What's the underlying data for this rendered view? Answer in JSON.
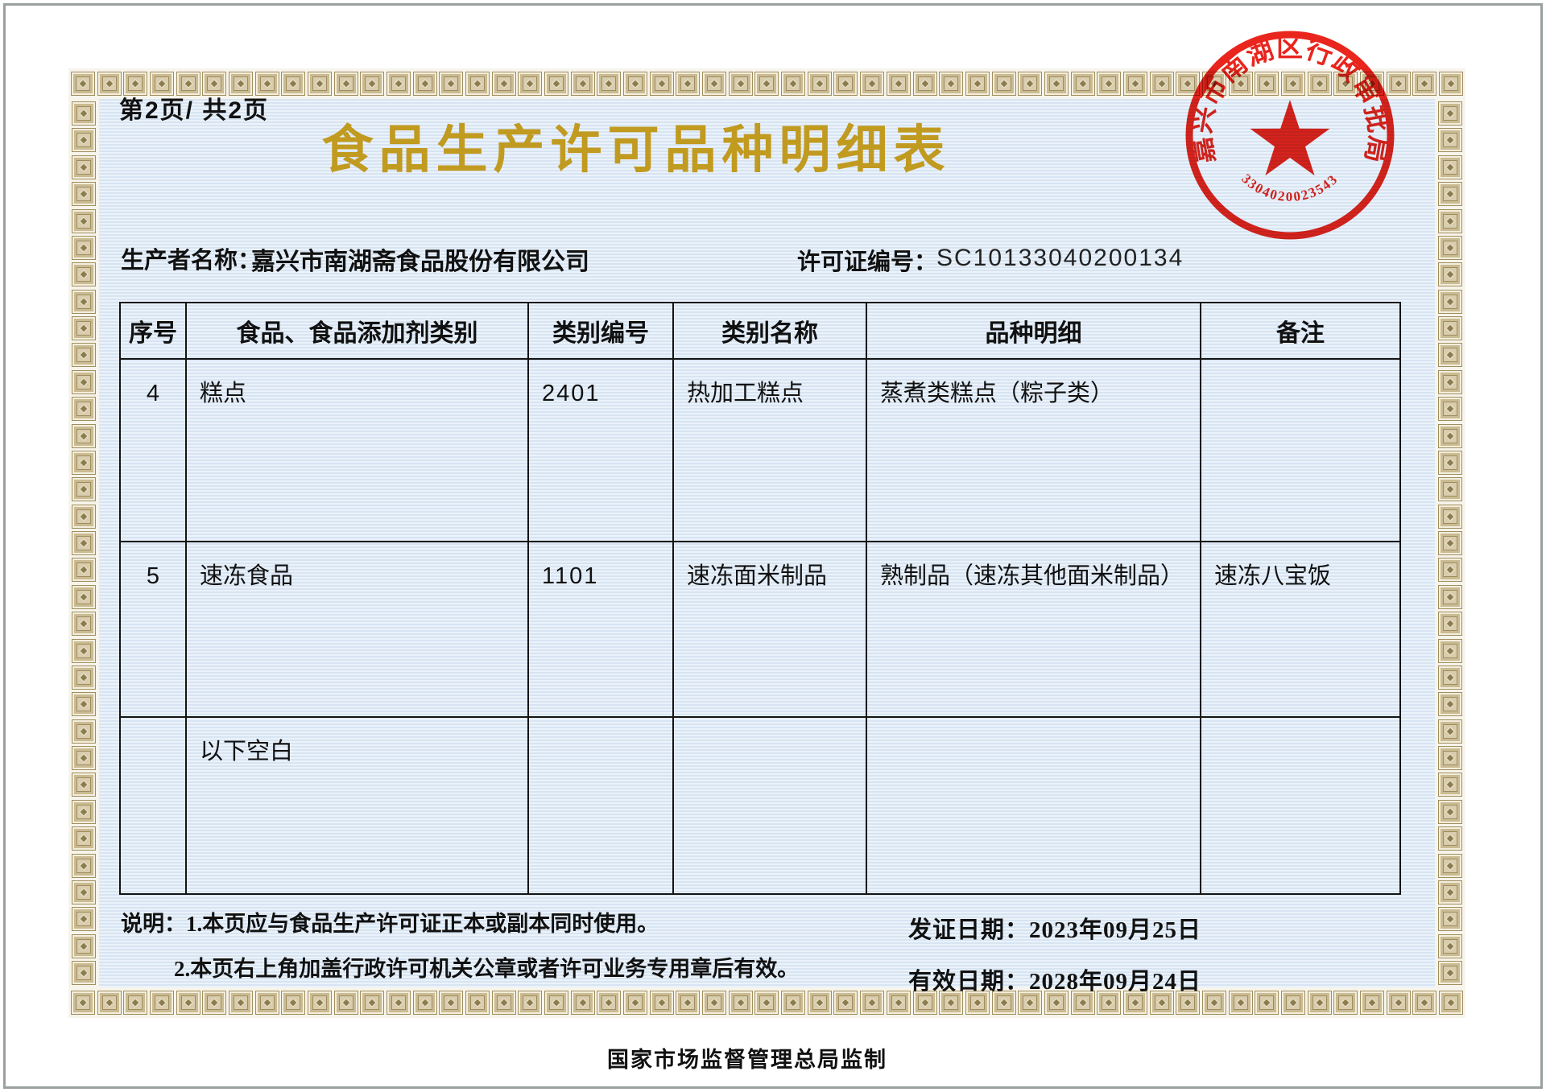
{
  "page": {
    "page_indicator": "第2页/ 共2页",
    "title": "食品生产许可品种明细表",
    "producer_label": "生产者名称：",
    "producer_name": "嘉兴市南湖斋食品股份有限公司",
    "license_label": "许可证编号：",
    "license_number": "SC10133040200134",
    "footer": "国家市场监督管理总局监制"
  },
  "stamp": {
    "ring_text": "嘉兴市南湖区行政审批局",
    "serial": "3304020023543",
    "color": "#e8170e"
  },
  "table": {
    "headers": [
      "序号",
      "食品、食品添加剂类别",
      "类别编号",
      "类别名称",
      "品种明细",
      "备注"
    ],
    "rows": [
      {
        "seq": "4",
        "category": "糕点",
        "code": "2401",
        "name": "热加工糕点",
        "detail": "蒸煮类糕点（粽子类）",
        "remark": ""
      },
      {
        "seq": "5",
        "category": "速冻食品",
        "code": "1101",
        "name": "速冻面米制品",
        "detail": "熟制品（速冻其他面米制品）",
        "remark": "速冻八宝饭"
      },
      {
        "seq": "",
        "category": "以下空白",
        "code": "",
        "name": "",
        "detail": "",
        "remark": ""
      }
    ]
  },
  "notes": {
    "line1": "说明：1.本页应与食品生产许可证正本或副本同时使用。",
    "line2": "2.本页右上角加盖行政许可机关公章或者许可业务专用章后有效。"
  },
  "dates": {
    "issue": "发证日期：2023年09月25日",
    "valid": "有效日期：2028年09月24日"
  },
  "colors": {
    "title_gold": "#c19a20",
    "stamp_red": "#e8170e",
    "paper_blue": "#dce8f5",
    "border_tan": "#d9cdad"
  }
}
